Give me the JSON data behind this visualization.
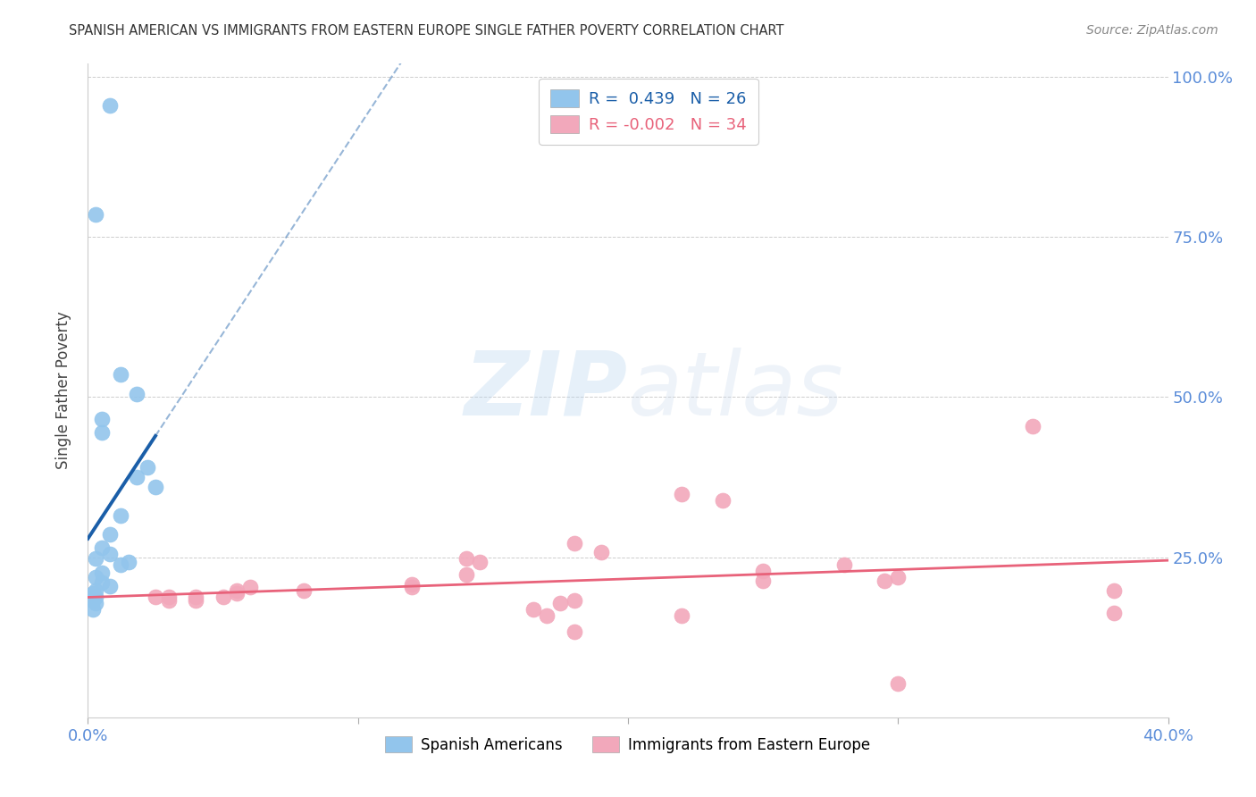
{
  "title": "SPANISH AMERICAN VS IMMIGRANTS FROM EASTERN EUROPE SINGLE FATHER POVERTY CORRELATION CHART",
  "source": "Source: ZipAtlas.com",
  "ylabel": "Single Father Poverty",
  "watermark_zip": "ZIP",
  "watermark_atlas": "atlas",
  "blue_R": 0.439,
  "blue_N": 26,
  "pink_R": -0.002,
  "pink_N": 34,
  "xlim": [
    0.0,
    0.4
  ],
  "ylim": [
    0.0,
    1.02
  ],
  "yticks": [
    0.0,
    0.25,
    0.5,
    0.75,
    1.0
  ],
  "ytick_labels": [
    "",
    "25.0%",
    "50.0%",
    "75.0%",
    "100.0%"
  ],
  "xticks": [
    0.0,
    0.1,
    0.2,
    0.3,
    0.4
  ],
  "xtick_labels": [
    "0.0%",
    "",
    "",
    "",
    "40.0%"
  ],
  "blue_dots": [
    [
      0.008,
      0.955
    ],
    [
      0.003,
      0.785
    ],
    [
      0.012,
      0.535
    ],
    [
      0.018,
      0.505
    ],
    [
      0.005,
      0.465
    ],
    [
      0.005,
      0.445
    ],
    [
      0.022,
      0.39
    ],
    [
      0.018,
      0.375
    ],
    [
      0.025,
      0.36
    ],
    [
      0.012,
      0.315
    ],
    [
      0.008,
      0.285
    ],
    [
      0.005,
      0.265
    ],
    [
      0.008,
      0.255
    ],
    [
      0.003,
      0.248
    ],
    [
      0.015,
      0.243
    ],
    [
      0.012,
      0.238
    ],
    [
      0.005,
      0.225
    ],
    [
      0.003,
      0.218
    ],
    [
      0.005,
      0.21
    ],
    [
      0.008,
      0.205
    ],
    [
      0.003,
      0.198
    ],
    [
      0.002,
      0.193
    ],
    [
      0.003,
      0.188
    ],
    [
      0.002,
      0.183
    ],
    [
      0.003,
      0.178
    ],
    [
      0.002,
      0.168
    ]
  ],
  "pink_dots": [
    [
      0.35,
      0.455
    ],
    [
      0.22,
      0.348
    ],
    [
      0.235,
      0.338
    ],
    [
      0.18,
      0.272
    ],
    [
      0.19,
      0.258
    ],
    [
      0.14,
      0.248
    ],
    [
      0.145,
      0.243
    ],
    [
      0.28,
      0.238
    ],
    [
      0.25,
      0.228
    ],
    [
      0.14,
      0.223
    ],
    [
      0.3,
      0.218
    ],
    [
      0.295,
      0.213
    ],
    [
      0.25,
      0.213
    ],
    [
      0.12,
      0.208
    ],
    [
      0.12,
      0.203
    ],
    [
      0.06,
      0.203
    ],
    [
      0.055,
      0.198
    ],
    [
      0.08,
      0.198
    ],
    [
      0.055,
      0.193
    ],
    [
      0.05,
      0.188
    ],
    [
      0.04,
      0.188
    ],
    [
      0.03,
      0.188
    ],
    [
      0.025,
      0.188
    ],
    [
      0.04,
      0.183
    ],
    [
      0.03,
      0.183
    ],
    [
      0.18,
      0.183
    ],
    [
      0.175,
      0.178
    ],
    [
      0.165,
      0.168
    ],
    [
      0.17,
      0.158
    ],
    [
      0.22,
      0.158
    ],
    [
      0.18,
      0.133
    ],
    [
      0.3,
      0.053
    ],
    [
      0.38,
      0.198
    ],
    [
      0.38,
      0.163
    ]
  ],
  "blue_color": "#92C5EC",
  "pink_color": "#F2A8BB",
  "blue_line_color": "#1A5EA8",
  "pink_line_color": "#E8627A",
  "background": "#FFFFFF",
  "grid_color": "#C8C8C8",
  "axis_label_color": "#5B8DD9",
  "title_color": "#333333",
  "source_color": "#888888",
  "legend_label_blue": "Spanish Americans",
  "legend_label_pink": "Immigrants from Eastern Europe"
}
